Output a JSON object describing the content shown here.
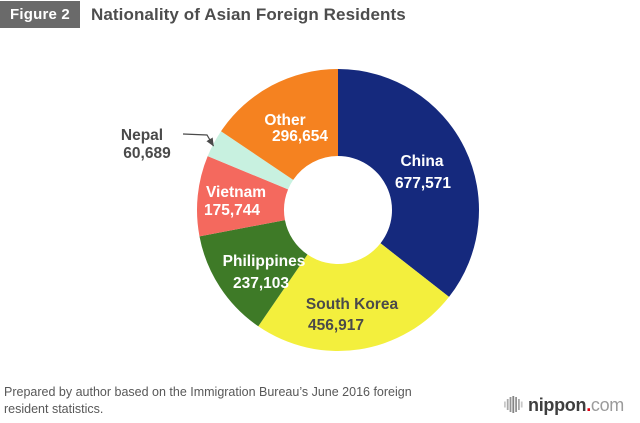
{
  "header": {
    "figure_label": "Figure 2",
    "title": "Nationality of Asian Foreign Residents"
  },
  "chart_data": {
    "type": "pie",
    "subtype": "donut",
    "title": "Nationality of Asian Foreign Residents",
    "segments": [
      {
        "name": "China",
        "value": 677571,
        "display": "677,571",
        "color": "#15297d",
        "label_color": "#ffffff"
      },
      {
        "name": "South Korea",
        "value": 456917,
        "display": "456,917",
        "color": "#f3ef3d",
        "label_color": "#4a4a4a"
      },
      {
        "name": "Philippines",
        "value": 237103,
        "display": "237,103",
        "color": "#3e7a27",
        "label_color": "#ffffff"
      },
      {
        "name": "Vietnam",
        "value": 175744,
        "display": "175,744",
        "color": "#f4695e",
        "label_color": "#ffffff"
      },
      {
        "name": "Nepal",
        "value": 60689,
        "display": "60,689",
        "color": "#c8f1e0",
        "label_color": "#4a4a4a",
        "label_outside": true
      },
      {
        "name": "Other",
        "value": 296654,
        "display": "296,654",
        "color": "#f58220",
        "label_color": "#ffffff"
      }
    ],
    "layout": {
      "start_angle_deg": 0,
      "direction": "clockwise",
      "donut_hole_ratio": 0.38,
      "legend": "none",
      "labels": "inside-with-values, Nepal called out with leader line"
    }
  },
  "footer": {
    "source_note": "Prepared by author based on the Immigration Bureau’s June 2016 foreign resident statistics."
  },
  "logo": {
    "brand": "nippon",
    "dot": ".",
    "tld": "com"
  }
}
